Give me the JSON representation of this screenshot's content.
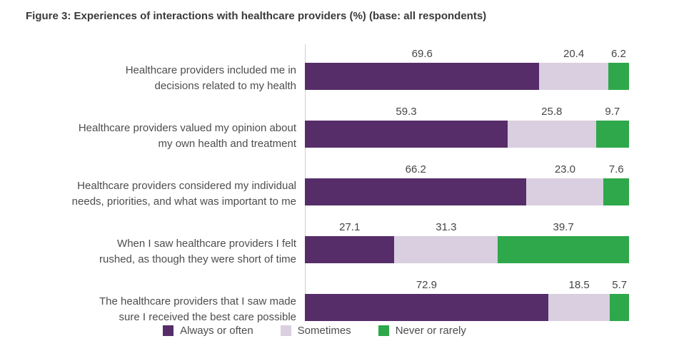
{
  "title": "Figure 3: Experiences of interactions with healthcare providers (%) (base: all respondents)",
  "palette": {
    "always_or_often": "#562D69",
    "sometimes": "#D9CFE0",
    "never_or_rarely": "#2EA84A",
    "axis_line": "#CFCFCF",
    "title_text": "#3A3A3A",
    "label_text": "#4D4D4D"
  },
  "legend": [
    {
      "label": "Always or often",
      "color": "#562D69"
    },
    {
      "label": "Sometimes",
      "color": "#D9CFE0"
    },
    {
      "label": "Never or rarely",
      "color": "#2EA84A"
    }
  ],
  "chart_data": {
    "type": "bar",
    "variant": "horizontal_stacked_100pct",
    "title": "Figure 3: Experiences of interactions with healthcare providers (%) (base: all respondents)",
    "unit": "%",
    "legend_position": "bottom",
    "value_labels": "above_segments",
    "value_format": "one_decimal",
    "grid": false,
    "categories": [
      "Healthcare providers included me in decisions related to my health",
      "Healthcare providers valued my opinion about my own health and treatment",
      "Healthcare providers considered my individual needs, priorities, and what was important to me",
      "When I saw healthcare providers I felt rushed, as though they were short of time",
      "The healthcare providers that I saw made sure I received the best care possible"
    ],
    "category_label_lines": [
      [
        "Healthcare providers included me in",
        "decisions related to my health"
      ],
      [
        "Healthcare providers valued my opinion about",
        "my own health and treatment"
      ],
      [
        "Healthcare providers considered my individual",
        "needs, priorities, and what was important to me"
      ],
      [
        "When I saw healthcare providers I felt",
        "rushed, as though they were short of time"
      ],
      [
        "The healthcare providers that I saw made",
        "sure I received the best care possible"
      ]
    ],
    "series": [
      {
        "name": "Always or often",
        "color": "#562D69",
        "values": [
          69.6,
          59.3,
          66.2,
          27.1,
          72.9
        ]
      },
      {
        "name": "Sometimes",
        "color": "#D9CFE0",
        "values": [
          20.4,
          25.8,
          23.0,
          31.3,
          18.5
        ]
      },
      {
        "name": "Never or rarely",
        "color": "#2EA84A",
        "values": [
          6.2,
          9.7,
          7.6,
          39.7,
          5.7
        ]
      }
    ]
  }
}
